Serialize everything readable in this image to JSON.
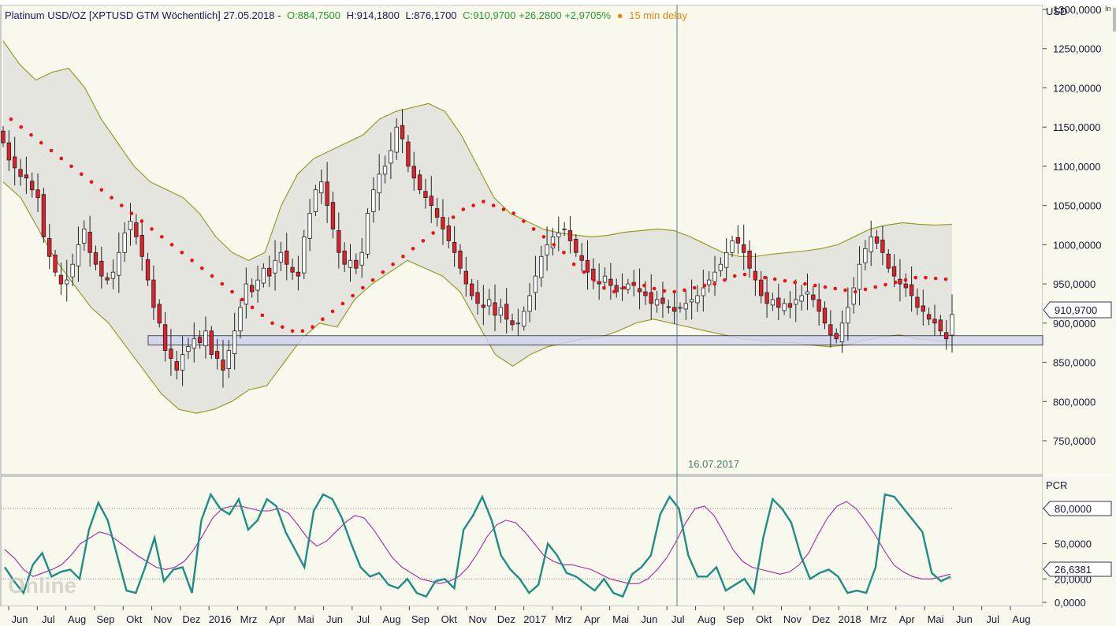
{
  "header": {
    "title": "Platinum USD/OZ [XPTUSD GTM Wöchentlich] 27.05.2018 -",
    "open": "O:884,7500",
    "high": "H:914,1800",
    "low": "L:876,1700",
    "close": "C:910,9700 +26,2800 +2,9705%",
    "delay_dot": "●",
    "delay": "15 min delay",
    "corner": "In"
  },
  "price_panel": {
    "unit": "USD",
    "y_ticks": [
      "1300,0000",
      "1250,0000",
      "1200,0000",
      "1150,0000",
      "1100,0000",
      "1050,0000",
      "1000,0000",
      "950,0000",
      "900,0000",
      "850,0000",
      "800,0000",
      "750,0000"
    ],
    "y_tick_values": [
      1300,
      1250,
      1200,
      1150,
      1100,
      1050,
      1000,
      950,
      900,
      850,
      800,
      750
    ],
    "last_price_label": "910,9700",
    "crosshair_date": "16.07.2017"
  },
  "indicator_panel": {
    "name": "PCR",
    "y_ticks": [
      "80,0000",
      "50,0000",
      "20,0000",
      "0,0000"
    ],
    "y_tick_values": [
      80,
      50,
      20,
      0
    ],
    "current_label": "26,6381",
    "reference_levels": [
      80,
      20
    ]
  },
  "x_axis": {
    "labels": [
      "Jun",
      "Jul",
      "Aug",
      "Sep",
      "Okt",
      "Nov",
      "Dez",
      "2016",
      "Mrz",
      "Apr",
      "Mai",
      "Jun",
      "Jul",
      "Aug",
      "Sep",
      "Okt",
      "Nov",
      "Dez",
      "2017",
      "Mrz",
      "Apr",
      "Mai",
      "Jun",
      "Jul",
      "Aug",
      "Sep",
      "Okt",
      "Nov",
      "Dez",
      "2018",
      "Mrz",
      "Apr",
      "Mai",
      "Jun",
      "Jul",
      "Aug"
    ]
  },
  "watermark": "Online",
  "colors": {
    "background": "#f8f8ed",
    "bullish_candle": "#ffffff",
    "bearish_candle": "#e0202a",
    "band_fill": "#e2e2dc",
    "band_line": "#9a9a2a",
    "parabolic_sar": "#ee1111",
    "pcr_line": "#1f8c86",
    "pcr_signal": "#a02aa0",
    "support_zone": "#d2d6f0",
    "crosshair": "#557a8a",
    "header_green": "#2a9a2a",
    "header_orange": "#e08a10"
  },
  "chart_data": {
    "type": "candlestick",
    "instrument": "Platinum USD/OZ",
    "interval": "weekly",
    "last_bar": {
      "date": "27.05.2018",
      "open": 884.75,
      "high": 914.18,
      "low": 876.17,
      "close": 910.97,
      "change": 26.28,
      "change_pct": 2.9705
    },
    "start": "2015-05",
    "end": "2018-05",
    "close_series": [
      1130,
      1108,
      1098,
      1087,
      1085,
      1070,
      1060,
      1010,
      985,
      965,
      950,
      955,
      975,
      1000,
      1020,
      990,
      975,
      960,
      955,
      965,
      990,
      1015,
      1030,
      1010,
      985,
      955,
      920,
      900,
      865,
      855,
      840,
      860,
      870,
      880,
      875,
      890,
      860,
      855,
      840,
      865,
      890,
      920,
      950,
      940,
      955,
      970,
      960,
      980,
      990,
      975,
      965,
      960,
      1010,
      1040,
      1070,
      1080,
      1050,
      1020,
      990,
      975,
      980,
      970,
      990,
      1040,
      1070,
      1090,
      1100,
      1120,
      1150,
      1135,
      1100,
      1085,
      1070,
      1060,
      1050,
      1035,
      1020,
      1005,
      990,
      970,
      950,
      935,
      925,
      920,
      930,
      910,
      920,
      905,
      898,
      900,
      915,
      935,
      960,
      985,
      1000,
      1010,
      1015,
      1020,
      1005,
      990,
      980,
      965,
      955,
      950,
      960,
      948,
      940,
      945,
      950,
      948,
      940,
      935,
      925,
      930,
      925,
      920,
      915,
      920,
      925,
      930,
      935,
      945,
      955,
      965,
      975,
      990,
      1005,
      1002,
      990,
      970,
      955,
      935,
      925,
      930,
      920,
      925,
      920,
      930,
      935,
      940,
      930,
      915,
      900,
      885,
      880,
      900,
      920,
      945,
      975,
      995,
      1010,
      1002,
      990,
      970,
      960,
      950,
      945,
      935,
      920,
      915,
      905,
      900,
      890,
      880,
      910.97
    ],
    "sar": [
      1160,
      1150,
      1140,
      1130,
      1120,
      1110,
      1100,
      1090,
      1080,
      1070,
      1060,
      1050,
      1040,
      1030,
      1020,
      1010,
      1000,
      990,
      980,
      970,
      960,
      950,
      940,
      930,
      920,
      910,
      900,
      895,
      890,
      890,
      895,
      905,
      915,
      925,
      935,
      945,
      955,
      965,
      975,
      985,
      995,
      1005,
      1015,
      1025,
      1035,
      1045,
      1050,
      1055,
      1050,
      1045,
      1040,
      1030,
      1020,
      1010,
      1000,
      990,
      975,
      965,
      955,
      945,
      940,
      945,
      950,
      948,
      944,
      941,
      940,
      942,
      945,
      948,
      950,
      955,
      960,
      962,
      960,
      958,
      956,
      954,
      952,
      950,
      948,
      946,
      944,
      942,
      940,
      943,
      946,
      949,
      952,
      955,
      958,
      958,
      957,
      956
    ],
    "bollinger_upper": [
      1260,
      1230,
      1210,
      1220,
      1225,
      1200,
      1160,
      1130,
      1100,
      1080,
      1070,
      1060,
      1040,
      1010,
      990,
      980,
      990,
      1050,
      1090,
      1110,
      1120,
      1130,
      1140,
      1160,
      1170,
      1175,
      1180,
      1170,
      1140,
      1100,
      1060,
      1040,
      1030,
      1020,
      1015,
      1012,
      1010,
      1012,
      1016,
      1018,
      1020,
      1018,
      1010,
      1000,
      990,
      985,
      985,
      988,
      990,
      992,
      995,
      1000,
      1010,
      1020,
      1025,
      1028,
      1026,
      1025,
      1026
    ],
    "bollinger_lower": [
      1080,
      1060,
      1020,
      980,
      950,
      920,
      900,
      870,
      840,
      810,
      790,
      785,
      790,
      800,
      815,
      820,
      850,
      880,
      900,
      895,
      930,
      950,
      965,
      980,
      970,
      960,
      940,
      900,
      860,
      845,
      860,
      870,
      875,
      880,
      882,
      890,
      900,
      905,
      900,
      895,
      890,
      885,
      880,
      878,
      876,
      875,
      872,
      870,
      872,
      878,
      882,
      885,
      880,
      878,
      876
    ]
  },
  "pcr_data": {
    "pcr": [
      30,
      18,
      8,
      32,
      42,
      22,
      26,
      28,
      20,
      62,
      85,
      70,
      40,
      10,
      8,
      30,
      55,
      18,
      28,
      30,
      8,
      70,
      92,
      80,
      75,
      88,
      62,
      70,
      88,
      82,
      60,
      45,
      30,
      78,
      92,
      88,
      72,
      50,
      30,
      22,
      25,
      15,
      12,
      20,
      8,
      5,
      18,
      20,
      12,
      62,
      74,
      90,
      70,
      40,
      28,
      20,
      8,
      15,
      50,
      40,
      25,
      22,
      16,
      10,
      20,
      8,
      5,
      24,
      30,
      40,
      75,
      90,
      80,
      40,
      22,
      22,
      30,
      10,
      15,
      20,
      8,
      55,
      88,
      80,
      68,
      40,
      20,
      25,
      28,
      22,
      8,
      10,
      8,
      30,
      92,
      90,
      80,
      70,
      60,
      25,
      18,
      22
    ],
    "signal": [
      45,
      38,
      28,
      22,
      25,
      28,
      32,
      40,
      50,
      55,
      60,
      58,
      52,
      46,
      40,
      35,
      30,
      28,
      30,
      35,
      45,
      58,
      72,
      80,
      82,
      82,
      80,
      78,
      78,
      80,
      76,
      66,
      55,
      48,
      52,
      60,
      68,
      74,
      72,
      62,
      50,
      38,
      30,
      25,
      20,
      18,
      16,
      18,
      22,
      30,
      42,
      56,
      66,
      70,
      68,
      60,
      50,
      40,
      35,
      32,
      32,
      30,
      28,
      24,
      20,
      18,
      16,
      16,
      20,
      28,
      38,
      52,
      68,
      80,
      82,
      74,
      60,
      45,
      35,
      30,
      28,
      26,
      24,
      26,
      32,
      42,
      58,
      72,
      82,
      86,
      80,
      70,
      58,
      44,
      32,
      26,
      22,
      20,
      20,
      22,
      24
    ]
  }
}
